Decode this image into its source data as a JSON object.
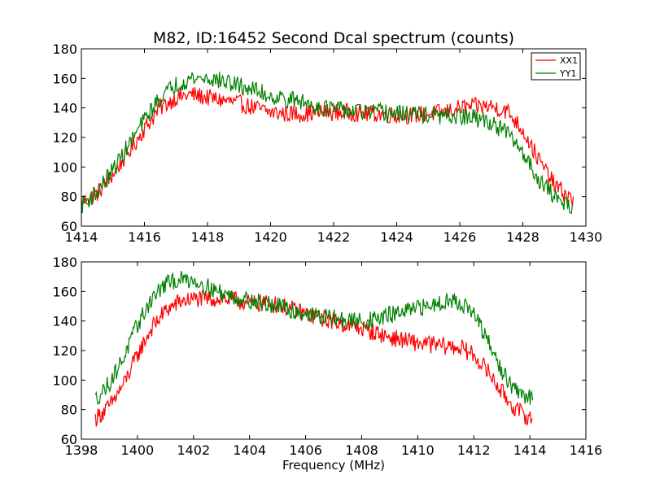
{
  "title": "M82, ID:16452 Second Dcal spectrum (counts)",
  "colors": {
    "XX1": "#ff0000",
    "YY1": "#008000"
  },
  "chart_data": [
    {
      "type": "line",
      "xlim": [
        1414,
        1430
      ],
      "ylim": [
        60,
        180
      ],
      "xticks": [
        1414,
        1416,
        1418,
        1420,
        1422,
        1424,
        1426,
        1428,
        1430
      ],
      "yticks": [
        60,
        80,
        100,
        120,
        140,
        160,
        180
      ],
      "xlabel": "",
      "ylabel": "",
      "legend": {
        "placement": "top-right",
        "entries": [
          "XX1",
          "YY1"
        ]
      },
      "series": [
        {
          "name": "XX1",
          "color": "#ff0000",
          "x": [
            1414.0,
            1414.5,
            1415.0,
            1415.5,
            1416.0,
            1416.5,
            1417.0,
            1417.5,
            1418.0,
            1418.5,
            1419.0,
            1419.5,
            1420.0,
            1420.5,
            1421.0,
            1421.5,
            1422.0,
            1422.5,
            1423.0,
            1423.5,
            1424.0,
            1424.5,
            1425.0,
            1425.5,
            1426.0,
            1426.5,
            1427.0,
            1427.5,
            1428.0,
            1428.5,
            1429.0,
            1429.6
          ],
          "y": [
            76,
            82,
            95,
            110,
            126,
            140,
            147,
            149,
            147,
            145,
            143,
            140,
            137,
            136,
            136,
            137,
            137,
            137,
            136,
            136,
            135,
            135,
            136,
            137,
            140,
            141,
            141,
            138,
            125,
            105,
            88,
            77
          ]
        },
        {
          "name": "YY1",
          "color": "#008000",
          "x": [
            1414.0,
            1414.5,
            1415.0,
            1415.5,
            1416.0,
            1416.5,
            1417.0,
            1417.5,
            1418.0,
            1418.5,
            1419.0,
            1419.5,
            1420.0,
            1420.5,
            1421.0,
            1421.5,
            1422.0,
            1422.5,
            1423.0,
            1423.5,
            1424.0,
            1424.5,
            1425.0,
            1425.5,
            1426.0,
            1426.5,
            1427.0,
            1427.5,
            1428.0,
            1428.5,
            1429.0,
            1429.6
          ],
          "y": [
            74,
            83,
            98,
            115,
            132,
            147,
            156,
            160,
            160,
            158,
            155,
            152,
            148,
            146,
            144,
            141,
            139,
            138,
            137,
            137,
            136,
            136,
            135,
            134,
            134,
            133,
            130,
            123,
            110,
            92,
            80,
            73
          ]
        }
      ]
    },
    {
      "type": "line",
      "xlim": [
        1398,
        1416
      ],
      "ylim": [
        60,
        180
      ],
      "xticks": [
        1398,
        1400,
        1402,
        1404,
        1406,
        1408,
        1410,
        1412,
        1414,
        1416
      ],
      "yticks": [
        60,
        80,
        100,
        120,
        140,
        160,
        180
      ],
      "xlabel": "Frequency (MHz)",
      "ylabel": "",
      "series": [
        {
          "name": "XX1",
          "color": "#ff0000",
          "x": [
            1398.5,
            1399.0,
            1399.5,
            1400.0,
            1400.5,
            1401.0,
            1401.5,
            1402.0,
            1402.5,
            1403.0,
            1403.5,
            1404.0,
            1404.5,
            1405.0,
            1405.5,
            1406.0,
            1406.5,
            1407.0,
            1407.5,
            1408.0,
            1408.5,
            1409.0,
            1409.5,
            1410.0,
            1410.5,
            1411.0,
            1411.5,
            1412.0,
            1412.5,
            1413.0,
            1413.5,
            1414.1
          ],
          "y": [
            74,
            82,
            97,
            117,
            135,
            147,
            153,
            155,
            155,
            155,
            154,
            152,
            152,
            151,
            148,
            145,
            142,
            140,
            137,
            135,
            132,
            129,
            127,
            125,
            124,
            123,
            122,
            117,
            106,
            92,
            80,
            73
          ]
        },
        {
          "name": "YY1",
          "color": "#008000",
          "x": [
            1398.5,
            1399.0,
            1399.5,
            1400.0,
            1400.5,
            1401.0,
            1401.5,
            1402.0,
            1402.5,
            1403.0,
            1403.5,
            1404.0,
            1404.5,
            1405.0,
            1405.5,
            1406.0,
            1406.5,
            1407.0,
            1407.5,
            1408.0,
            1408.5,
            1409.0,
            1409.5,
            1410.0,
            1410.5,
            1411.0,
            1411.5,
            1412.0,
            1412.5,
            1413.0,
            1413.5,
            1414.1
          ],
          "y": [
            87,
            98,
            115,
            137,
            155,
            165,
            168,
            168,
            163,
            159,
            156,
            154,
            152,
            150,
            147,
            145,
            143,
            142,
            140,
            140,
            141,
            144,
            146,
            148,
            151,
            154,
            153,
            145,
            126,
            106,
            92,
            87
          ]
        }
      ]
    }
  ]
}
